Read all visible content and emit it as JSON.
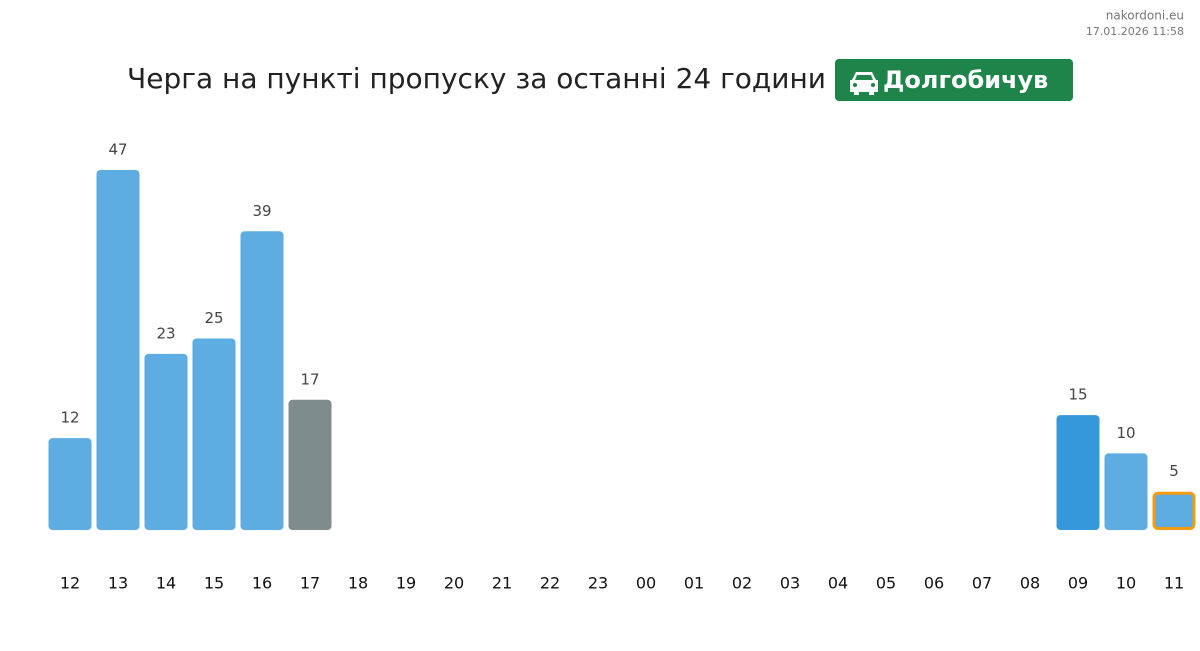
{
  "chart_data": {
    "type": "bar",
    "title": "Черга на пункті пропуску за останні 24 години",
    "badge": "Долгобичув",
    "source": "nakordoni.eu",
    "timestamp": "17.01.2026 11:58",
    "categories": [
      "12",
      "13",
      "14",
      "15",
      "16",
      "17",
      "18",
      "19",
      "20",
      "21",
      "22",
      "23",
      "00",
      "01",
      "02",
      "03",
      "04",
      "05",
      "06",
      "07",
      "08",
      "09",
      "10",
      "11"
    ],
    "values": [
      12,
      47,
      23,
      25,
      39,
      17,
      null,
      null,
      null,
      null,
      null,
      null,
      null,
      null,
      null,
      null,
      null,
      null,
      null,
      null,
      null,
      15,
      10,
      5
    ],
    "colors": [
      "#5dade2",
      "#5dade2",
      "#5dade2",
      "#5dade2",
      "#5dade2",
      "#7f8c8d",
      null,
      null,
      null,
      null,
      null,
      null,
      null,
      null,
      null,
      null,
      null,
      null,
      null,
      null,
      null,
      "#3498db",
      "#5dade2",
      "#5dade2"
    ],
    "highlight_index": 23,
    "highlight_color": "#f39c12"
  }
}
